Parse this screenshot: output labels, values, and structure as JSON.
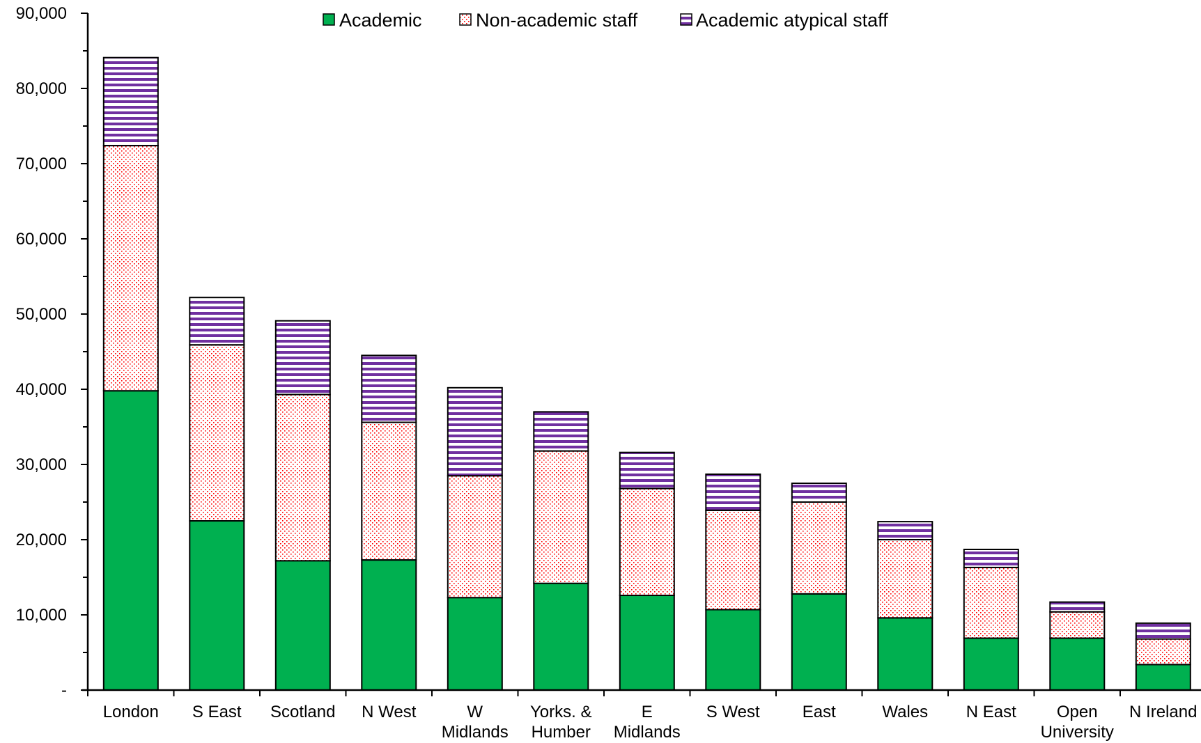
{
  "chart_data": {
    "type": "bar",
    "stacked": true,
    "categories": [
      "London",
      "S East",
      "Scotland",
      "N West",
      "W Midlands",
      "Yorks. & Humber",
      "E Midlands",
      "S West",
      "East",
      "Wales",
      "N East",
      "Open University",
      "N Ireland"
    ],
    "category_lines": [
      [
        "London"
      ],
      [
        "S East"
      ],
      [
        "Scotland"
      ],
      [
        "N West"
      ],
      [
        "W",
        "Midlands"
      ],
      [
        "Yorks. &",
        "Humber"
      ],
      [
        "E",
        "Midlands"
      ],
      [
        "S West"
      ],
      [
        "East"
      ],
      [
        "Wales"
      ],
      [
        "N East"
      ],
      [
        "Open",
        "University"
      ],
      [
        "N Ireland"
      ]
    ],
    "series": [
      {
        "name": "Academic",
        "pattern": "solid",
        "color": "#00b050",
        "values": [
          39800,
          22500,
          17200,
          17300,
          12300,
          14200,
          12600,
          10700,
          12800,
          9600,
          6900,
          6900,
          3400
        ]
      },
      {
        "name": "Non-academic staff",
        "pattern": "dots",
        "color": "#ff0000",
        "values": [
          32600,
          23400,
          22100,
          18300,
          16200,
          17600,
          14200,
          13200,
          12200,
          10400,
          9400,
          3500,
          3400
        ]
      },
      {
        "name": "Academic atypical staff",
        "pattern": "horizontal-stripes",
        "color": "#7030a0",
        "values": [
          11700,
          6300,
          9800,
          8900,
          11700,
          5200,
          4800,
          4800,
          2500,
          2400,
          2400,
          1300,
          2100
        ]
      }
    ],
    "y_ticks": [
      "-",
      "10,000",
      "20,000",
      "30,000",
      "40,000",
      "50,000",
      "60,000",
      "70,000",
      "80,000",
      "90,000"
    ],
    "ylim": [
      0,
      90000
    ],
    "grid": false,
    "legend_position": "top-center"
  }
}
